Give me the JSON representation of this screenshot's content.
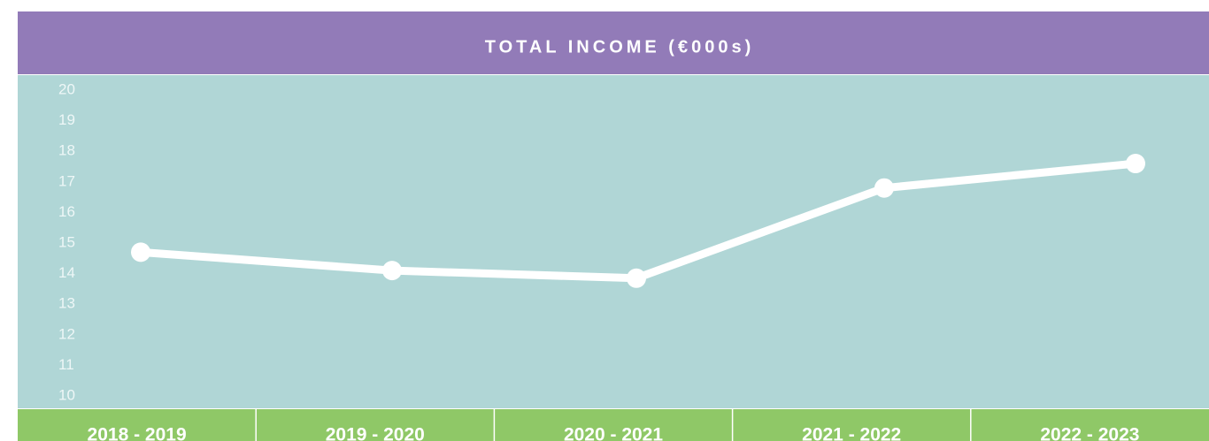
{
  "chart_data": {
    "type": "line",
    "title": "TOTAL INCOME (€000s)",
    "categories": [
      "2018 - 2019",
      "2019 - 2020",
      "2020 - 2021",
      "2021 - 2022",
      "2022 - 2023"
    ],
    "values": [
      14.7,
      14.1,
      13.85,
      16.8,
      17.6
    ],
    "color": "#ffffff",
    "ylim": [
      10,
      20
    ],
    "yticks": [
      10,
      11,
      12,
      13,
      14,
      15,
      16,
      17,
      18,
      19,
      20
    ],
    "grid": false
  }
}
